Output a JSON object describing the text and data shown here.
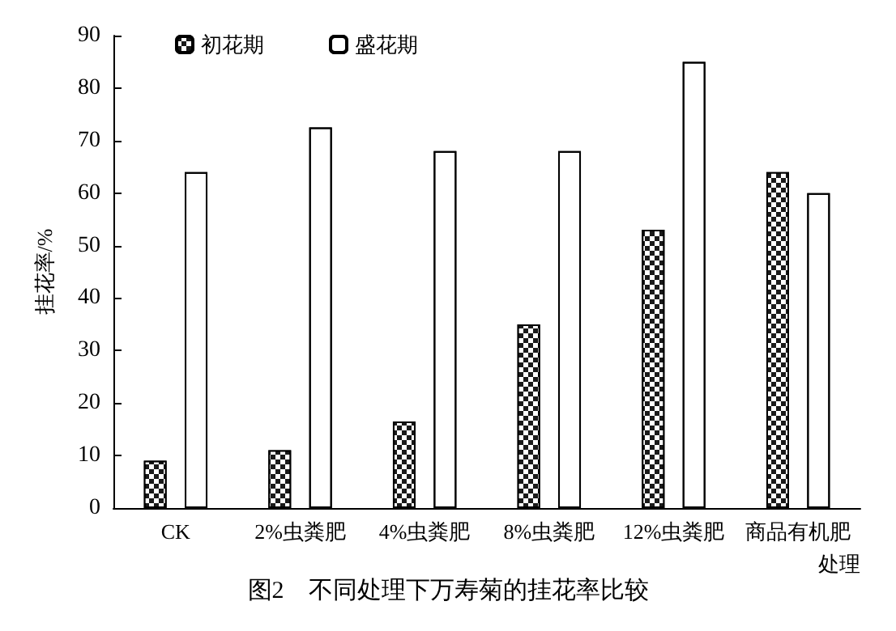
{
  "chart_data": {
    "type": "bar",
    "title": "图2　不同处理下万寿菊的挂花率比较",
    "xlabel": "处理",
    "ylabel": "挂花率/%",
    "categories": [
      "CK",
      "2%虫粪肥",
      "4%虫粪肥",
      "8%虫粪肥",
      "12%虫粪肥",
      "商品有机肥"
    ],
    "series": [
      {
        "name": "初花期",
        "color": "#1a1a1a",
        "values": [
          9,
          11,
          16.5,
          35,
          53,
          64
        ]
      },
      {
        "name": "盛花期",
        "color": "#ffffff",
        "values": [
          64,
          72.5,
          68,
          68,
          85,
          60
        ]
      }
    ],
    "ylim": [
      0,
      90
    ],
    "yticks": [
      0,
      10,
      20,
      30,
      40,
      50,
      60,
      70,
      80,
      90
    ],
    "grid": false,
    "legend": "top left"
  }
}
